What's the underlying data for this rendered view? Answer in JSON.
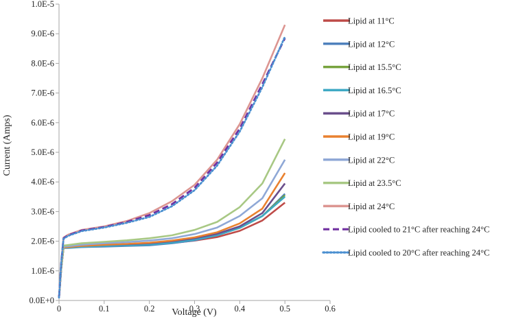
{
  "chart_data": {
    "type": "line",
    "title": "",
    "xlabel": "Voltage (V)",
    "ylabel": "Current (Amps)",
    "xlim": [
      0,
      0.6
    ],
    "ylim": [
      0,
      1e-05
    ],
    "x_ticks": [
      0,
      0.1,
      0.2,
      0.3,
      0.4,
      0.5,
      0.6
    ],
    "x_tick_labels": [
      "0",
      "0.1",
      "0.2",
      "0.3",
      "0.4",
      "0.5",
      "0.6"
    ],
    "y_ticks": [
      0,
      1e-06,
      2e-06,
      3e-06,
      4e-06,
      5e-06,
      6e-06,
      7e-06,
      8e-06,
      9e-06,
      1e-05
    ],
    "y_tick_labels": [
      "0.0E+0",
      "1.0E-6",
      "2.0E-6",
      "3.0E-6",
      "4.0E-6",
      "5.0E-6",
      "6.0E-6",
      "7.0E-6",
      "8.0E-6",
      "9.0E-6",
      "1.0E-5"
    ],
    "grid": false,
    "legend_position": "right",
    "x": [
      0,
      0.005,
      0.01,
      0.02,
      0.05,
      0.1,
      0.15,
      0.2,
      0.25,
      0.3,
      0.35,
      0.4,
      0.45,
      0.5
    ],
    "series": [
      {
        "name": "Lipid at 11°C",
        "color": "#be4b48",
        "dash": "solid",
        "values": [
          1e-07,
          1.1e-06,
          1.78e-06,
          1.78e-06,
          1.82e-06,
          1.84e-06,
          1.86e-06,
          1.88e-06,
          1.94e-06,
          2.02e-06,
          2.14e-06,
          2.35e-06,
          2.7e-06,
          3.3e-06
        ]
      },
      {
        "name": "Lipid at 12°C",
        "color": "#4f81bd",
        "dash": "solid",
        "values": [
          1e-07,
          1.1e-06,
          1.77e-06,
          1.77e-06,
          1.8e-06,
          1.82e-06,
          1.84e-06,
          1.86e-06,
          1.93e-06,
          2.03e-06,
          2.2e-06,
          2.45e-06,
          2.85e-06,
          3.6e-06
        ]
      },
      {
        "name": "Lipid at 15.5°C",
        "color": "#77a33d",
        "dash": "solid",
        "values": [
          1e-07,
          1.1e-06,
          1.79e-06,
          1.8e-06,
          1.83e-06,
          1.86e-06,
          1.88e-06,
          1.91e-06,
          1.97e-06,
          2.06e-06,
          2.21e-06,
          2.45e-06,
          2.85e-06,
          3.55e-06
        ]
      },
      {
        "name": "Lipid at 16.5°C",
        "color": "#3fa9c4",
        "dash": "solid",
        "values": [
          1e-07,
          1.1e-06,
          1.78e-06,
          1.78e-06,
          1.81e-06,
          1.84e-06,
          1.86e-06,
          1.89e-06,
          1.95e-06,
          2.05e-06,
          2.2e-06,
          2.45e-06,
          2.85e-06,
          3.5e-06
        ]
      },
      {
        "name": "Lipid at 17°C",
        "color": "#6b4f8c",
        "dash": "solid",
        "values": [
          1e-07,
          1.1e-06,
          1.8e-06,
          1.81e-06,
          1.85e-06,
          1.88e-06,
          1.9e-06,
          1.93e-06,
          2e-06,
          2.1e-06,
          2.25e-06,
          2.5e-06,
          2.95e-06,
          3.95e-06
        ]
      },
      {
        "name": "Lipid at 19°C",
        "color": "#e9812f",
        "dash": "solid",
        "values": [
          1e-07,
          1.1e-06,
          1.79e-06,
          1.8e-06,
          1.84e-06,
          1.88e-06,
          1.91e-06,
          1.95e-06,
          2.02e-06,
          2.13e-06,
          2.3e-06,
          2.6e-06,
          3.1e-06,
          4.3e-06
        ]
      },
      {
        "name": "Lipid at 22°C",
        "color": "#8fa8d6",
        "dash": "solid",
        "values": [
          1e-07,
          1.1e-06,
          1.82e-06,
          1.83e-06,
          1.88e-06,
          1.93e-06,
          1.97e-06,
          2.02e-06,
          2.1e-06,
          2.24e-06,
          2.46e-06,
          2.85e-06,
          3.45e-06,
          4.75e-06
        ]
      },
      {
        "name": "Lipid at 23.5°C",
        "color": "#a8c884",
        "dash": "solid",
        "values": [
          1e-07,
          1.1e-06,
          1.85e-06,
          1.87e-06,
          1.93e-06,
          1.98e-06,
          2.03e-06,
          2.1e-06,
          2.2e-06,
          2.38e-06,
          2.65e-06,
          3.15e-06,
          3.95e-06,
          5.45e-06
        ]
      },
      {
        "name": "Lipid at 24°C",
        "color": "#dc9591",
        "dash": "solid",
        "values": [
          1e-07,
          1.3e-06,
          2.12e-06,
          2.22e-06,
          2.38e-06,
          2.5e-06,
          2.68e-06,
          2.95e-06,
          3.35e-06,
          3.9e-06,
          4.75e-06,
          5.95e-06,
          7.5e-06,
          9.3e-06
        ]
      },
      {
        "name": "Lipid cooled to 21°C after reaching 24°C",
        "color": "#7030a0",
        "dash": "dash",
        "values": [
          1e-07,
          1.3e-06,
          2.1e-06,
          2.2e-06,
          2.36e-06,
          2.48e-06,
          2.65e-06,
          2.88e-06,
          3.25e-06,
          3.8e-06,
          4.65e-06,
          5.8e-06,
          7.3e-06,
          8.85e-06
        ]
      },
      {
        "name": "Lipid cooled to 20°C after reaching 24°C",
        "color": "#4a8fd0",
        "dash": "dot",
        "values": [
          1e-07,
          1.3e-06,
          2.08e-06,
          2.18e-06,
          2.34e-06,
          2.46e-06,
          2.62e-06,
          2.82e-06,
          3.18e-06,
          3.72e-06,
          4.55e-06,
          5.7e-06,
          7.2e-06,
          8.9e-06
        ]
      }
    ]
  }
}
